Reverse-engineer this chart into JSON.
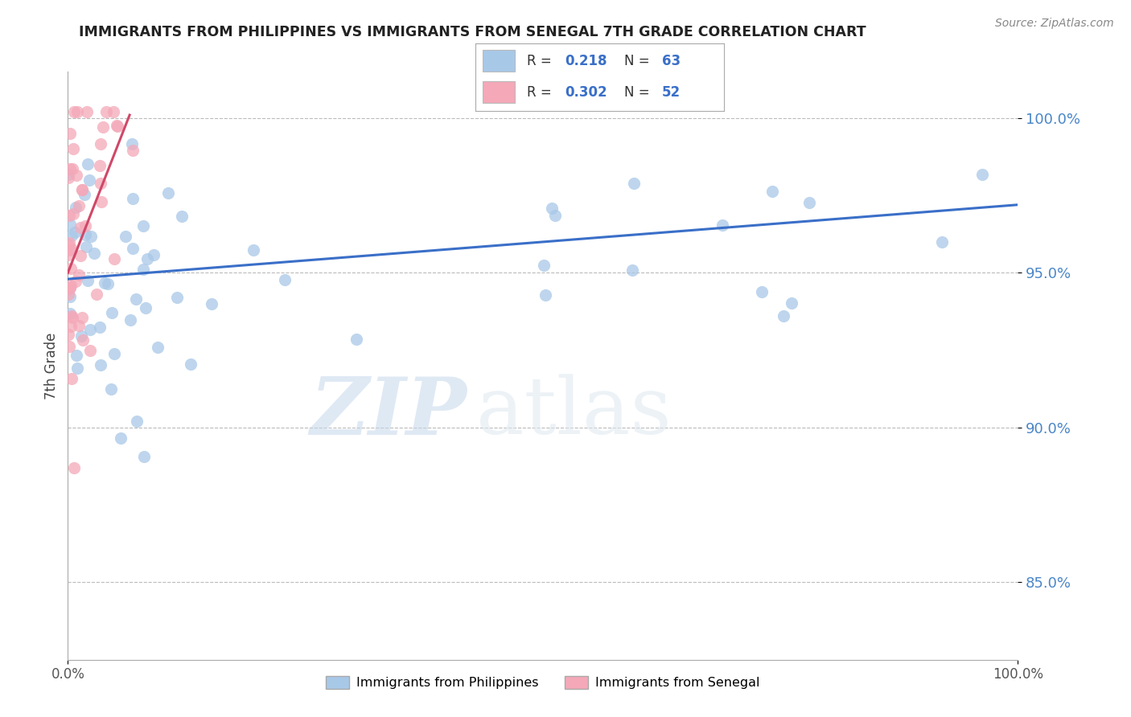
{
  "title": "IMMIGRANTS FROM PHILIPPINES VS IMMIGRANTS FROM SENEGAL 7TH GRADE CORRELATION CHART",
  "source": "Source: ZipAtlas.com",
  "ylabel": "7th Grade",
  "ytick_vals": [
    0.85,
    0.9,
    0.95,
    1.0
  ],
  "ytick_labels": [
    "85.0%",
    "90.0%",
    "95.0%",
    "100.0%"
  ],
  "r_philippines": 0.218,
  "n_philippines": 63,
  "r_senegal": 0.302,
  "n_senegal": 52,
  "color_philippines": "#a8c8e8",
  "color_senegal": "#f4a8b8",
  "line_color_philippines": "#3a6fc8",
  "line_color_senegal": "#d04868",
  "watermark_zip": "ZIP",
  "watermark_atlas": "atlas",
  "legend_label_philippines": "Immigrants from Philippines",
  "legend_label_senegal": "Immigrants from Senegal",
  "xlim": [
    0.0,
    1.0
  ],
  "ylim": [
    0.825,
    1.015
  ],
  "phil_line_x0": 0.0,
  "phil_line_y0": 0.948,
  "phil_line_x1": 1.0,
  "phil_line_y1": 0.972,
  "sen_line_x0": 0.0,
  "sen_line_y0": 0.95,
  "sen_line_x1": 0.065,
  "sen_line_y1": 1.001
}
